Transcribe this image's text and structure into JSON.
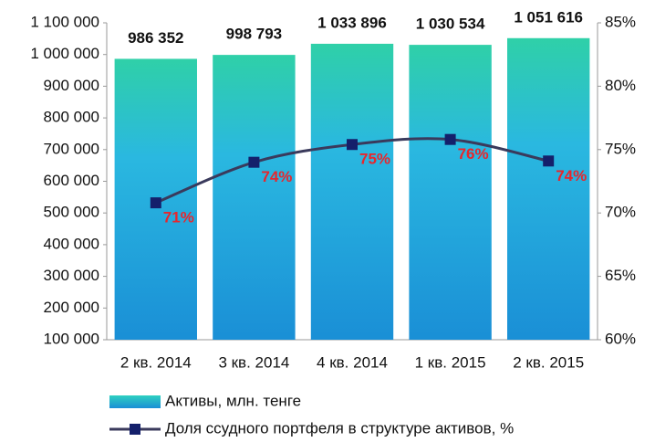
{
  "chart_data": {
    "type": "bar",
    "categories": [
      "2 кв. 2014",
      "3 кв. 2014",
      "4 кв. 2014",
      "1 кв. 2015",
      "2 кв. 2015"
    ],
    "series": [
      {
        "name": "Активы, млн. тенге",
        "color": "#1a8fd6",
        "values": [
          986352,
          998793,
          1033896,
          1030534,
          1051616
        ],
        "value_labels": [
          "986 352",
          "998 793",
          "1 033 896",
          "1 030 534",
          "1 051 616"
        ]
      },
      {
        "name": "Доля ссудного портфеля в структуре активов, %",
        "type": "line",
        "axis": "y2",
        "color": "#3a3a5c",
        "marker_color": "#14206b",
        "label_color": "#e8262c",
        "values": [
          70.8,
          74.0,
          75.4,
          75.8,
          74.1
        ],
        "value_labels": [
          "71%",
          "74%",
          "75%",
          "76%",
          "74%"
        ]
      }
    ],
    "ylim": [
      100000,
      1100000
    ],
    "yticks": [
      {
        "value": 100000,
        "label": "100 000"
      },
      {
        "value": 200000,
        "label": "200 000"
      },
      {
        "value": 300000,
        "label": "300 000"
      },
      {
        "value": 400000,
        "label": "400 000"
      },
      {
        "value": 500000,
        "label": "500 000"
      },
      {
        "value": 600000,
        "label": "600 000"
      },
      {
        "value": 700000,
        "label": "700 000"
      },
      {
        "value": 800000,
        "label": "800 000"
      },
      {
        "value": 900000,
        "label": "900 000"
      },
      {
        "value": 1000000,
        "label": "1 000 000"
      },
      {
        "value": 1100000,
        "label": "1 100 000"
      }
    ],
    "y2lim": [
      60,
      85
    ],
    "y2ticks": [
      {
        "value": 60,
        "label": "60%"
      },
      {
        "value": 65,
        "label": "65%"
      },
      {
        "value": 70,
        "label": "70%"
      },
      {
        "value": 75,
        "label": "75%"
      },
      {
        "value": 80,
        "label": "80%"
      },
      {
        "value": 85,
        "label": "85%"
      }
    ],
    "grid": false,
    "legend": "bottom"
  }
}
